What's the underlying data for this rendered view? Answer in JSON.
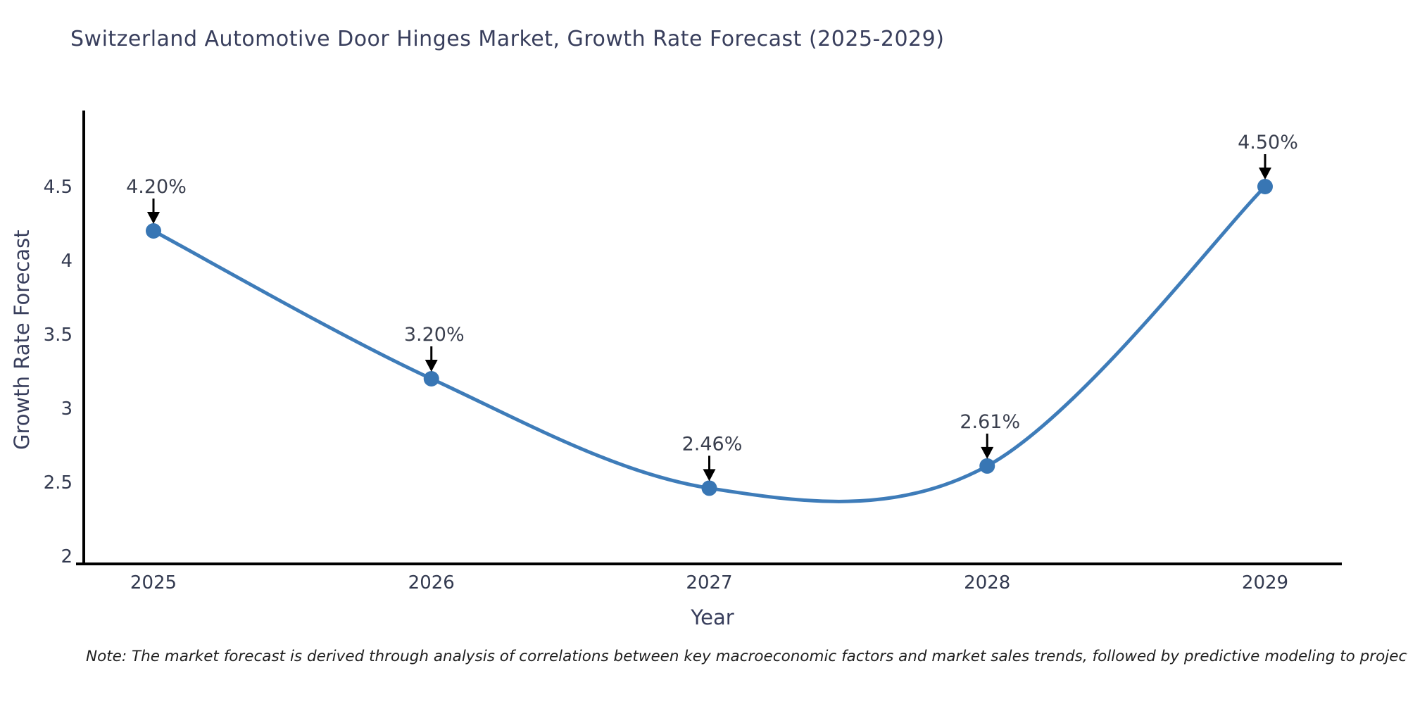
{
  "title": "Switzerland Automotive Door Hinges Market, Growth Rate Forecast (2025-2029)",
  "note": "Note: The market forecast is derived through analysis of correlations between key macroeconomic factors and market sales trends, followed by predictive modeling to project future sales",
  "chart_data": {
    "type": "line",
    "line_shape": "spline",
    "title": "Switzerland Automotive Door Hinges Market, Growth Rate Forecast (2025-2029)",
    "xlabel": "Year",
    "ylabel": "Growth Rate Forecast",
    "x": [
      2025,
      2026,
      2027,
      2028,
      2029
    ],
    "series": [
      {
        "name": "Growth Rate Forecast",
        "values": [
          4.2,
          3.2,
          2.46,
          2.61,
          4.5
        ]
      }
    ],
    "point_labels": [
      "4.20%",
      "3.20%",
      "2.46%",
      "2.61%",
      "4.50%"
    ],
    "xticks": [
      "2025",
      "2026",
      "2027",
      "2028",
      "2029"
    ],
    "yticks": [
      2,
      2.5,
      3,
      3.5,
      4,
      4.5
    ],
    "ylim": [
      1.95,
      5.0
    ],
    "grid": false,
    "legend": "none",
    "markers": true,
    "annotations_arrow": true,
    "colors": {
      "line": "#3E7CB9",
      "marker": "#3876B4",
      "axis": "#000000",
      "tick_text": "#333a50",
      "title_text": "#383e5c",
      "annotation_text": "#3a3f4e",
      "arrow": "#000000"
    }
  }
}
